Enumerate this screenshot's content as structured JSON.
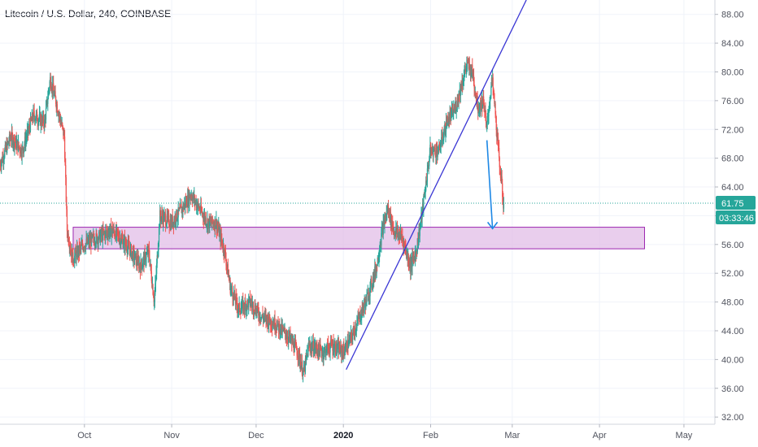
{
  "title": "Litecoin / U.S. Dollar, 240, COINBASE",
  "colors": {
    "up": "#26a69a",
    "down": "#ef5350",
    "trendline": "#3a36d4",
    "arrow": "#1e88e5",
    "zone_fill": "#e1bee7",
    "zone_border": "#9c27b0",
    "price_line": "#26a69a",
    "grid": "#f0f3fa"
  },
  "chart_data": {
    "type": "candlestick",
    "title": "Litecoin / U.S. Dollar, 240, COINBASE",
    "xlabel": "",
    "ylabel": "",
    "ylim": [
      31,
      90
    ],
    "xlim": [
      "2019-09-01",
      "2020-05-12"
    ],
    "grid": true,
    "y_ticks": [
      "32.00",
      "36.00",
      "40.00",
      "44.00",
      "48.00",
      "52.00",
      "56.00",
      "60.00",
      "64.00",
      "68.00",
      "72.00",
      "76.00",
      "80.00",
      "84.00",
      "88.00"
    ],
    "x_ticks": [
      {
        "label": "Oct",
        "date": "2019-10-01",
        "bold": false
      },
      {
        "label": "Nov",
        "date": "2019-11-01",
        "bold": false
      },
      {
        "label": "Dec",
        "date": "2019-12-01",
        "bold": false
      },
      {
        "label": "2020",
        "date": "2020-01-01",
        "bold": true
      },
      {
        "label": "Feb",
        "date": "2020-02-01",
        "bold": false
      },
      {
        "label": "Mar",
        "date": "2020-03-01",
        "bold": false
      },
      {
        "label": "Apr",
        "date": "2020-04-01",
        "bold": false
      },
      {
        "label": "May",
        "date": "2020-05-01",
        "bold": false
      }
    ],
    "price_path": [
      [
        "2019-09-01",
        67
      ],
      [
        "2019-09-05",
        71
      ],
      [
        "2019-09-09",
        69
      ],
      [
        "2019-09-13",
        74
      ],
      [
        "2019-09-17",
        73
      ],
      [
        "2019-09-19",
        79
      ],
      [
        "2019-09-21",
        76
      ],
      [
        "2019-09-24",
        71
      ],
      [
        "2019-09-25",
        58
      ],
      [
        "2019-09-27",
        54
      ],
      [
        "2019-10-01",
        56
      ],
      [
        "2019-10-06",
        57
      ],
      [
        "2019-10-11",
        58
      ],
      [
        "2019-10-16",
        56
      ],
      [
        "2019-10-21",
        53
      ],
      [
        "2019-10-24",
        55
      ],
      [
        "2019-10-26",
        48
      ],
      [
        "2019-10-27",
        54
      ],
      [
        "2019-10-28",
        60
      ],
      [
        "2019-11-01",
        59
      ],
      [
        "2019-11-05",
        61
      ],
      [
        "2019-11-08",
        63
      ],
      [
        "2019-11-11",
        61
      ],
      [
        "2019-11-14",
        59
      ],
      [
        "2019-11-17",
        59
      ],
      [
        "2019-11-20",
        55
      ],
      [
        "2019-11-22",
        50
      ],
      [
        "2019-11-25",
        47
      ],
      [
        "2019-11-29",
        48
      ],
      [
        "2019-12-03",
        46
      ],
      [
        "2019-12-08",
        45
      ],
      [
        "2019-12-13",
        43
      ],
      [
        "2019-12-16",
        41
      ],
      [
        "2019-12-18",
        38
      ],
      [
        "2019-12-20",
        42
      ],
      [
        "2019-12-25",
        41
      ],
      [
        "2019-12-28",
        42
      ],
      [
        "2020-01-01",
        41
      ],
      [
        "2020-01-04",
        43
      ],
      [
        "2020-01-07",
        46
      ],
      [
        "2020-01-10",
        49
      ],
      [
        "2020-01-13",
        53
      ],
      [
        "2020-01-15",
        58
      ],
      [
        "2020-01-17",
        61
      ],
      [
        "2020-01-19",
        58
      ],
      [
        "2020-01-22",
        57
      ],
      [
        "2020-01-25",
        53
      ],
      [
        "2020-01-27",
        55
      ],
      [
        "2020-01-29",
        60
      ],
      [
        "2020-02-01",
        69
      ],
      [
        "2020-02-04",
        69
      ],
      [
        "2020-02-07",
        73
      ],
      [
        "2020-02-10",
        75
      ],
      [
        "2020-02-12",
        78
      ],
      [
        "2020-02-14",
        81
      ],
      [
        "2020-02-16",
        80
      ],
      [
        "2020-02-18",
        75
      ],
      [
        "2020-02-20",
        76
      ],
      [
        "2020-02-21",
        72
      ],
      [
        "2020-02-23",
        79
      ],
      [
        "2020-02-24",
        75
      ],
      [
        "2020-02-25",
        70
      ],
      [
        "2020-02-26",
        66
      ],
      [
        "2020-02-27",
        61.75
      ]
    ],
    "current_price": {
      "label": "61.75",
      "value": 61.75
    },
    "countdown": {
      "label": "03:33:46"
    },
    "support_zone": {
      "start": "2019-09-27",
      "end": "2020-04-17",
      "low": 55.4,
      "high": 58.4
    },
    "trendline": {
      "start": [
        "2020-01-02",
        38.6
      ],
      "end": [
        "2020-03-06",
        90
      ]
    },
    "projection_arrow": {
      "start": [
        "2020-02-21",
        70.5
      ],
      "end": [
        "2020-02-23",
        58.2
      ]
    }
  }
}
